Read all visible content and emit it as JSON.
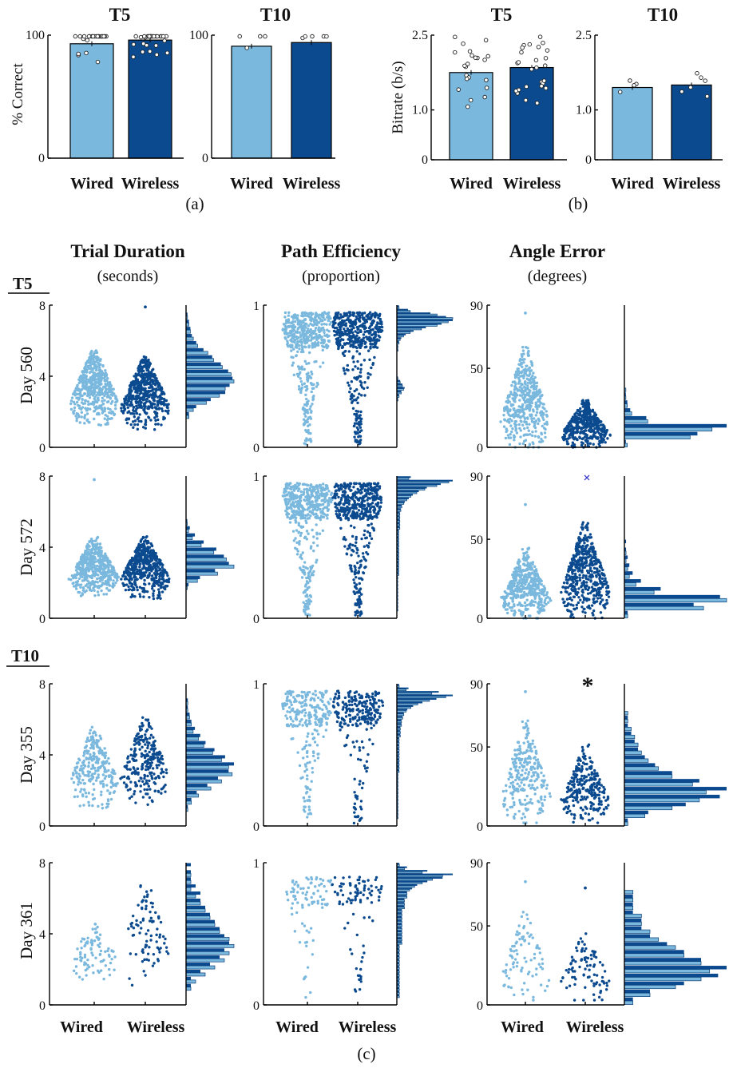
{
  "colors": {
    "wired": "#7ab8de",
    "wireless": "#0b4a8f",
    "outlier": "#3333cc"
  },
  "panel_a": {
    "label": "(a)",
    "ylabel": "% Correct"
  },
  "panel_b": {
    "label": "(b)",
    "ylabel": "Bitrate (b/s)"
  },
  "panel_c": {
    "label": "(c)",
    "columns": [
      {
        "title": "Trial Duration",
        "unit": "(seconds)"
      },
      {
        "title": "Path Efficiency",
        "unit": "(proportion)"
      },
      {
        "title": "Angle Error",
        "unit": "(degrees)"
      }
    ],
    "groups": [
      "T5",
      "T10"
    ],
    "rows": [
      "Day 560",
      "Day 572",
      "Day 355",
      "Day 361"
    ],
    "x_labels": [
      "Wired",
      "Wireless"
    ],
    "significance_marker": "*"
  },
  "chart_data": [
    {
      "type": "bar",
      "title": "T5",
      "ylabel": "% Correct",
      "categories": [
        "Wired",
        "Wireless"
      ],
      "values": [
        93,
        96
      ],
      "ylim": [
        0,
        100
      ],
      "yticks": [
        "0",
        "100"
      ],
      "points_per_bar": [
        24,
        29
      ]
    },
    {
      "type": "bar",
      "title": "T10",
      "ylabel": "",
      "categories": [
        "Wired",
        "Wireless"
      ],
      "values": [
        91,
        94
      ],
      "ylim": [
        0,
        100
      ],
      "yticks": [
        "0",
        "100"
      ],
      "points_per_bar": [
        4,
        5
      ]
    },
    {
      "type": "bar",
      "title": "T5",
      "ylabel": "Bitrate (b/s)",
      "categories": [
        "Wired",
        "Wireless"
      ],
      "values": [
        1.75,
        1.85
      ],
      "ylim": [
        0,
        2.5
      ],
      "yticks": [
        "0",
        "1.0",
        "2.5"
      ],
      "points_per_bar": [
        22,
        26
      ]
    },
    {
      "type": "bar",
      "title": "T10",
      "ylabel": "",
      "categories": [
        "Wired",
        "Wireless"
      ],
      "values": [
        1.45,
        1.5
      ],
      "ylim": [
        0,
        2.5
      ],
      "yticks": [
        "0",
        "1.0",
        "2.5"
      ],
      "points_per_bar": [
        4,
        6
      ]
    },
    {
      "type": "scatter",
      "group": "T5",
      "row": "Day 560",
      "metric": "Trial Duration",
      "ylim": [
        0,
        8
      ],
      "yticks": [
        "0",
        "4",
        "8"
      ],
      "categories": [
        "Wired",
        "Wireless"
      ],
      "points": [
        500,
        500
      ],
      "range": [
        [
          1.2,
          5.5
        ],
        [
          1.0,
          5.1
        ]
      ],
      "outliers": [
        [],
        [
          7.9
        ]
      ],
      "histogram": {
        "wired": [
          0,
          0,
          0,
          0,
          2,
          5,
          14,
          23,
          27,
          33,
          31,
          25,
          19,
          15,
          8,
          5,
          3,
          2,
          1,
          0
        ],
        "wireless": [
          0,
          0,
          0,
          0,
          2,
          7,
          17,
          27,
          30,
          32,
          29,
          24,
          18,
          12,
          7,
          4,
          3,
          2,
          1,
          0
        ]
      }
    },
    {
      "type": "scatter",
      "group": "T5",
      "row": "Day 560",
      "metric": "Path Efficiency",
      "ylim": [
        0,
        1
      ],
      "yticks": [
        "0",
        "1"
      ],
      "categories": [
        "Wired",
        "Wireless"
      ],
      "points": [
        500,
        500
      ],
      "range": [
        [
          0.02,
          0.95
        ],
        [
          0.02,
          0.95
        ]
      ],
      "histogram": {
        "wired": [
          0,
          0,
          0,
          0,
          0,
          0,
          0,
          0,
          0,
          0,
          0,
          0,
          0,
          1,
          2,
          4,
          6,
          5,
          3,
          1,
          0,
          0,
          0,
          0,
          0,
          0,
          0,
          1,
          1,
          2,
          3,
          6,
          12,
          22,
          36,
          46,
          50,
          36,
          12,
          2
        ],
        "wireless": [
          0,
          0,
          0,
          0,
          0,
          0,
          0,
          0,
          0,
          0,
          0,
          0,
          0,
          1,
          2,
          4,
          7,
          5,
          3,
          1,
          0,
          0,
          0,
          0,
          0,
          0,
          0,
          1,
          1,
          2,
          4,
          8,
          15,
          26,
          40,
          50,
          44,
          30,
          10,
          2
        ]
      }
    },
    {
      "type": "scatter",
      "group": "T5",
      "row": "Day 560",
      "metric": "Angle Error",
      "ylim": [
        0,
        90
      ],
      "yticks": [
        "0",
        "50",
        "90"
      ],
      "categories": [
        "Wired",
        "Wireless"
      ],
      "points": [
        450,
        450
      ],
      "range": [
        [
          0,
          65
        ],
        [
          0,
          30
        ]
      ],
      "outliers": [
        [
          85
        ],
        []
      ],
      "histogram": {
        "wired": [
          2,
          45,
          60,
          16,
          5,
          2,
          1,
          1,
          0,
          0,
          0,
          0,
          0,
          0,
          0,
          0,
          0,
          0
        ],
        "wireless": [
          1,
          50,
          70,
          15,
          4,
          2,
          1,
          0,
          0,
          0,
          0,
          0,
          0,
          0,
          0,
          0,
          0,
          0
        ]
      }
    },
    {
      "type": "scatter",
      "group": "T5",
      "row": "Day 572",
      "metric": "Trial Duration",
      "ylim": [
        0,
        8
      ],
      "yticks": [
        "0",
        "4",
        "8"
      ],
      "categories": [
        "Wired",
        "Wireless"
      ],
      "points": [
        500,
        500
      ],
      "range": [
        [
          1.2,
          4.6
        ],
        [
          1.1,
          4.6
        ]
      ],
      "outliers": [
        [
          7.8
        ],
        []
      ],
      "histogram": {
        "wired": [
          0,
          0,
          0,
          0,
          1,
          9,
          25,
          38,
          32,
          22,
          12,
          5,
          2,
          1,
          0,
          0,
          0,
          0,
          0,
          0
        ],
        "wireless": [
          0,
          0,
          0,
          0,
          2,
          11,
          23,
          34,
          30,
          24,
          14,
          7,
          3,
          1,
          0,
          0,
          0,
          0,
          0,
          0
        ]
      }
    },
    {
      "type": "scatter",
      "group": "T5",
      "row": "Day 572",
      "metric": "Path Efficiency",
      "ylim": [
        0,
        1
      ],
      "yticks": [
        "0",
        "1"
      ],
      "categories": [
        "Wired",
        "Wireless"
      ],
      "points": [
        500,
        500
      ],
      "range": [
        [
          0.02,
          0.95
        ],
        [
          0.02,
          0.95
        ]
      ],
      "histogram": {
        "wired": [
          0,
          0,
          1,
          1,
          1,
          1,
          1,
          1,
          1,
          1,
          1,
          1,
          2,
          2,
          2,
          2,
          2,
          2,
          2,
          2,
          2,
          2,
          2,
          2,
          2,
          3,
          3,
          3,
          3,
          3,
          4,
          5,
          7,
          10,
          14,
          20,
          28,
          40,
          52,
          12
        ],
        "wireless": [
          0,
          0,
          1,
          1,
          1,
          1,
          1,
          1,
          1,
          1,
          1,
          1,
          2,
          2,
          2,
          2,
          2,
          2,
          2,
          2,
          2,
          2,
          2,
          2,
          2,
          3,
          3,
          3,
          3,
          3,
          4,
          5,
          8,
          12,
          16,
          22,
          30,
          44,
          56,
          14
        ]
      }
    },
    {
      "type": "scatter",
      "group": "T5",
      "row": "Day 572",
      "metric": "Angle Error",
      "ylim": [
        0,
        90
      ],
      "yticks": [
        "0",
        "50",
        "90"
      ],
      "categories": [
        "Wired",
        "Wireless"
      ],
      "points": [
        450,
        500
      ],
      "range": [
        [
          0,
          45
        ],
        [
          0,
          62
        ]
      ],
      "outliers": [
        [
          72
        ],
        [
          89
        ]
      ],
      "histogram": {
        "wired": [
          2,
          48,
          62,
          18,
          7,
          3,
          2,
          1,
          1,
          0,
          0,
          0,
          0,
          0,
          0,
          0,
          0,
          0
        ],
        "wireless": [
          2,
          42,
          58,
          22,
          10,
          5,
          3,
          2,
          1,
          1,
          0,
          0,
          0,
          0,
          0,
          0,
          0,
          0
        ]
      }
    },
    {
      "type": "scatter",
      "group": "T10",
      "row": "Day 355",
      "metric": "Trial Duration",
      "ylim": [
        0,
        8
      ],
      "yticks": [
        "0",
        "4",
        "8"
      ],
      "categories": [
        "Wired",
        "Wireless"
      ],
      "points": [
        260,
        260
      ],
      "range": [
        [
          1.0,
          5.6
        ],
        [
          1.2,
          6.1
        ]
      ],
      "histogram": {
        "wired": [
          0,
          0,
          1,
          3,
          7,
          14,
          20,
          26,
          24,
          20,
          15,
          10,
          7,
          4,
          3,
          2,
          1,
          1,
          0,
          0
        ],
        "wireless": [
          0,
          0,
          1,
          3,
          6,
          12,
          18,
          24,
          27,
          22,
          16,
          11,
          8,
          5,
          3,
          2,
          1,
          1,
          0,
          0
        ]
      }
    },
    {
      "type": "scatter",
      "group": "T10",
      "row": "Day 355",
      "metric": "Path Efficiency",
      "ylim": [
        0,
        1
      ],
      "yticks": [
        "0",
        "1"
      ],
      "categories": [
        "Wired",
        "Wireless"
      ],
      "points": [
        260,
        260
      ],
      "range": [
        [
          0.05,
          0.95
        ],
        [
          0.02,
          0.95
        ]
      ],
      "histogram": {
        "wired": [
          0,
          0,
          1,
          1,
          1,
          1,
          1,
          1,
          1,
          1,
          1,
          1,
          1,
          1,
          1,
          2,
          2,
          2,
          2,
          2,
          2,
          2,
          2,
          2,
          2,
          3,
          3,
          3,
          4,
          4,
          5,
          6,
          8,
          12,
          18,
          28,
          42,
          30,
          8,
          2
        ],
        "wireless": [
          0,
          0,
          1,
          1,
          1,
          1,
          1,
          1,
          1,
          1,
          1,
          1,
          1,
          1,
          1,
          2,
          2,
          2,
          2,
          2,
          2,
          2,
          2,
          2,
          2,
          3,
          3,
          3,
          4,
          4,
          5,
          6,
          9,
          14,
          22,
          34,
          48,
          36,
          10,
          2
        ]
      }
    },
    {
      "type": "scatter",
      "group": "T10",
      "row": "Day 355",
      "metric": "Angle Error",
      "ylim": [
        0,
        90
      ],
      "yticks": [
        "0",
        "50",
        "90"
      ],
      "categories": [
        "Wired",
        "Wireless"
      ],
      "points": [
        260,
        260
      ],
      "range": [
        [
          2,
          68
        ],
        [
          2,
          52
        ]
      ],
      "outliers": [
        [
          85
        ],
        []
      ],
      "significance": "*",
      "histogram": {
        "wired": [
          1,
          6,
          14,
          22,
          24,
          20,
          14,
          10,
          7,
          5,
          4,
          3,
          2,
          1,
          1,
          0,
          0,
          0
        ],
        "wireless": [
          1,
          7,
          18,
          28,
          30,
          22,
          14,
          9,
          6,
          4,
          3,
          2,
          1,
          1,
          0,
          0,
          0,
          0
        ]
      }
    },
    {
      "type": "scatter",
      "group": "T10",
      "row": "Day 361",
      "metric": "Trial Duration",
      "ylim": [
        0,
        8
      ],
      "yticks": [
        "0",
        "4",
        "8"
      ],
      "categories": [
        "Wired",
        "Wireless"
      ],
      "points": [
        90,
        90
      ],
      "range": [
        [
          1.3,
          4.8
        ],
        [
          1.0,
          7.2
        ]
      ],
      "histogram": {
        "wired": [
          0,
          0,
          1,
          2,
          4,
          6,
          8,
          9,
          10,
          9,
          7,
          6,
          5,
          4,
          3,
          2,
          1,
          1,
          1,
          0
        ],
        "wireless": [
          0,
          0,
          1,
          1,
          3,
          5,
          7,
          8,
          9,
          8,
          7,
          6,
          5,
          4,
          3,
          3,
          2,
          1,
          1,
          1
        ]
      }
    },
    {
      "type": "scatter",
      "group": "T10",
      "row": "Day 361",
      "metric": "Path Efficiency",
      "ylim": [
        0,
        1
      ],
      "yticks": [
        "0",
        "1"
      ],
      "categories": [
        "Wired",
        "Wireless"
      ],
      "points": [
        90,
        90
      ],
      "range": [
        [
          0.05,
          0.9
        ],
        [
          0.02,
          0.9
        ]
      ],
      "histogram": {
        "wired": [
          0,
          0,
          1,
          1,
          1,
          1,
          1,
          1,
          1,
          1,
          1,
          1,
          1,
          1,
          1,
          1,
          1,
          2,
          2,
          2,
          2,
          2,
          2,
          2,
          2,
          2,
          2,
          3,
          3,
          3,
          4,
          4,
          5,
          7,
          10,
          14,
          18,
          10,
          3,
          1
        ],
        "wireless": [
          0,
          0,
          1,
          1,
          1,
          1,
          1,
          1,
          1,
          1,
          1,
          1,
          1,
          1,
          1,
          1,
          1,
          2,
          2,
          2,
          2,
          2,
          2,
          2,
          2,
          2,
          2,
          3,
          3,
          3,
          4,
          4,
          6,
          8,
          12,
          18,
          22,
          12,
          4,
          1
        ]
      }
    },
    {
      "type": "scatter",
      "group": "T10",
      "row": "Day 361",
      "metric": "Angle Error",
      "ylim": [
        0,
        90
      ],
      "yticks": [
        "0",
        "50",
        "90"
      ],
      "categories": [
        "Wired",
        "Wireless"
      ],
      "points": [
        90,
        90
      ],
      "range": [
        [
          3,
          60
        ],
        [
          3,
          48
        ]
      ],
      "outliers": [
        [
          78
        ],
        [
          74
        ]
      ],
      "histogram": {
        "wired": [
          1,
          3,
          6,
          9,
          10,
          9,
          7,
          6,
          4,
          3,
          2,
          2,
          1,
          1,
          1,
          0,
          0,
          0
        ],
        "wireless": [
          1,
          3,
          7,
          11,
          12,
          9,
          7,
          5,
          3,
          2,
          2,
          1,
          1,
          1,
          0,
          0,
          0,
          0
        ]
      }
    }
  ]
}
